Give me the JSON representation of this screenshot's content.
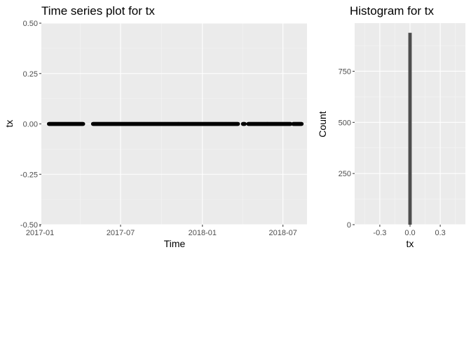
{
  "chart_data": [
    {
      "type": "scatter",
      "title": "Time series plot for tx",
      "xlabel": "Time",
      "ylabel": "tx",
      "x_type": "date",
      "xlim": [
        "2017-01-04",
        "2018-08-24"
      ],
      "ylim": [
        -0.5,
        0.5
      ],
      "x_ticks": [
        {
          "value": "2017-01-01",
          "label": "2017-01"
        },
        {
          "value": "2017-07-01",
          "label": "2017-07"
        },
        {
          "value": "2018-01-01",
          "label": "2018-01"
        },
        {
          "value": "2018-07-01",
          "label": "2018-07"
        }
      ],
      "y_ticks": [
        {
          "value": -0.5,
          "label": "-0.50"
        },
        {
          "value": -0.25,
          "label": "-0.25"
        },
        {
          "value": 0,
          "label": "0.00"
        },
        {
          "value": 0.25,
          "label": "0.25"
        },
        {
          "value": 0.5,
          "label": "0.50"
        }
      ],
      "grid": true,
      "point_color": "#000000",
      "series": [
        {
          "values_note_free": true,
          "segments": [
            {
              "x_start": "2017-01-21",
              "x_end": "2017-04-08",
              "y": 0
            },
            {
              "x_start": "2017-04-30",
              "x_end": "2018-03-22",
              "y": 0
            },
            {
              "x_start": "2018-04-02",
              "x_end": "2018-04-06",
              "y": 0
            },
            {
              "x_start": "2018-04-14",
              "x_end": "2018-07-18",
              "y": 0
            },
            {
              "x_start": "2018-07-24",
              "x_end": "2018-08-12",
              "y": 0
            }
          ]
        }
      ]
    },
    {
      "type": "bar",
      "title": "Histogram for tx",
      "xlabel": "tx",
      "ylabel": "Count",
      "xlim": [
        -0.55,
        0.55
      ],
      "ylim": [
        0,
        985
      ],
      "x_ticks": [
        {
          "value": -0.3,
          "label": "-0.3"
        },
        {
          "value": 0,
          "label": "0.0"
        },
        {
          "value": 0.3,
          "label": "0.3"
        }
      ],
      "y_ticks": [
        {
          "value": 0,
          "label": "0"
        },
        {
          "value": 250,
          "label": "250"
        },
        {
          "value": 500,
          "label": "500"
        },
        {
          "value": 750,
          "label": "750"
        }
      ],
      "grid": true,
      "bar_color": "#4d4d4d",
      "bins": [
        {
          "x_start": -0.017,
          "x_end": 0.017,
          "count": 938
        }
      ]
    }
  ]
}
